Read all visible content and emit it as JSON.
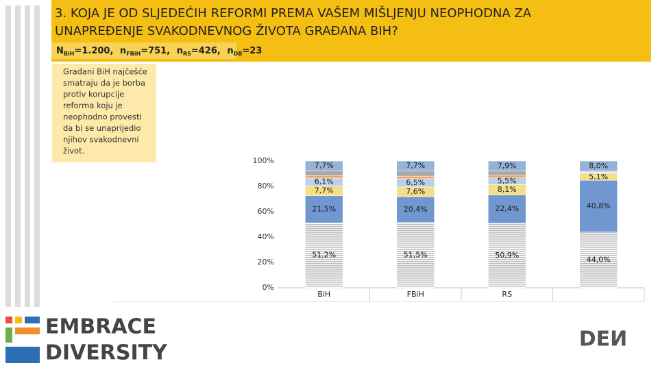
{
  "header": {
    "title_lines": [
      "3. KOJA JE OD SLJEDEĆIH REFORMI PREMA VAŠEM MIŠLJENJU NEOPHODNA ZA",
      "UNAPREĐENJE SVAKODNEVNOG ŽIVOTA GRAĐANA BIH?"
    ],
    "sample": [
      {
        "symbol": "N",
        "sub": "BiH",
        "text": "=1.200,"
      },
      {
        "symbol": "n",
        "sub": "FBiH",
        "text": "=751,"
      },
      {
        "symbol": "n",
        "sub": "RS",
        "text": "=426,"
      },
      {
        "symbol": "n",
        "sub": "DB",
        "text": "=23"
      }
    ]
  },
  "callout": [
    "Građani BiH najčešće",
    "smatraju da je borba",
    "protiv korupcije",
    "reforma koju je",
    "neophodno provesti",
    "da bi se unaprijedio",
    "njihov svakodnevni",
    "život."
  ],
  "logo": {
    "line1": "EMBRACE",
    "line2": "DIVERSITY",
    "right": "DEИ"
  },
  "chart_data": {
    "type": "stacked_bar",
    "categories": [
      "BiH",
      "FBiH",
      "RS",
      null
    ],
    "ylim": [
      0,
      100
    ],
    "yticks": [
      {
        "value": 0,
        "label": "0%"
      },
      {
        "value": 20,
        "label": "20%"
      },
      {
        "value": 40,
        "label": "40%"
      },
      {
        "value": 60,
        "label": "60%"
      },
      {
        "value": 80,
        "label": "80%"
      },
      {
        "value": 100,
        "label": "100%"
      }
    ],
    "series": [
      {
        "color": "#c9c9c9",
        "values": [
          51.2,
          51.5,
          50.9,
          44.0
        ],
        "value_labels": [
          "51,2%",
          "51,5%",
          "50,9%",
          "44,0%"
        ]
      },
      {
        "color": "#7197d0",
        "values": [
          21.5,
          20.4,
          22.4,
          40.8
        ],
        "value_labels": [
          "21,5%",
          "20,4%",
          "22,4%",
          "40,8%"
        ]
      },
      {
        "color": "#f4df86",
        "values": [
          7.7,
          7.6,
          8.1,
          5.1
        ],
        "value_labels": [
          "7,7%",
          "7,6%",
          "8,1%",
          "5,1%"
        ]
      },
      {
        "color": "#bcd0ea",
        "values": [
          6.1,
          6.5,
          5.5,
          1.0
        ],
        "value_labels": [
          "6,1%",
          "6,5%",
          "5,5%",
          null
        ]
      },
      {
        "color": "#f0a465",
        "values": [
          2.0,
          2.0,
          2.0,
          0.5
        ],
        "value_labels": [
          null,
          null,
          null,
          null
        ]
      },
      {
        "color": "#a9a9a9",
        "values": [
          3.8,
          4.3,
          3.2,
          0.6
        ],
        "value_labels": [
          null,
          null,
          null,
          null
        ]
      },
      {
        "color": "#95b3d7",
        "values": [
          7.7,
          7.7,
          7.9,
          8.0
        ],
        "value_labels": [
          "7,7%",
          "7,7%",
          "7,9%",
          "8,0%"
        ]
      }
    ]
  }
}
